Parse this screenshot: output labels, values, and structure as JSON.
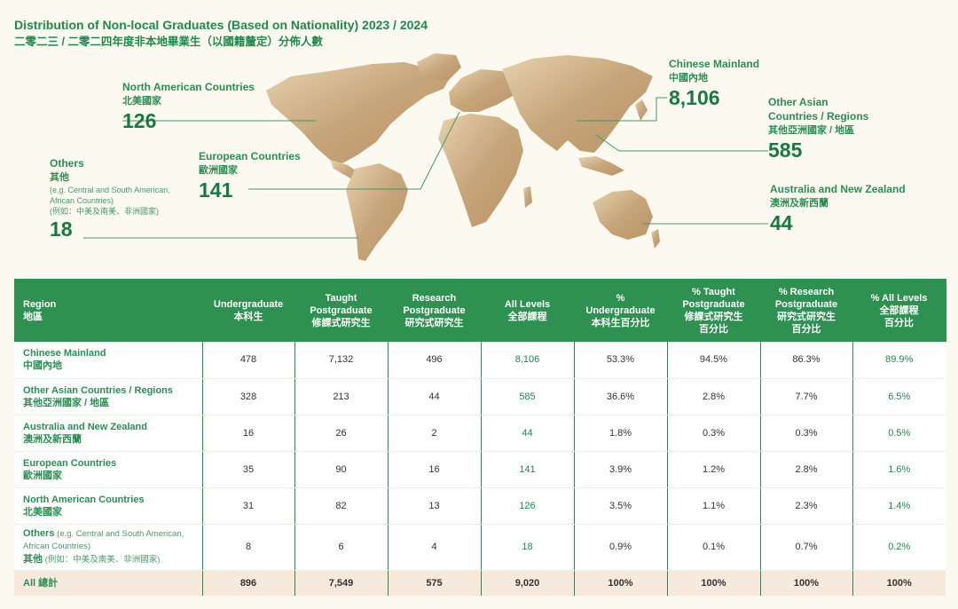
{
  "title": {
    "en": "Distribution of Non-local Graduates (Based on Nationality) 2023 / 2024",
    "zh": "二零二三 / 二零二四年度非本地畢業生（以國籍釐定）分佈人數"
  },
  "colors": {
    "accent": "#1e8a4c",
    "header_bg": "#2f9151",
    "map_gold": "#c9a97c",
    "total_row": "#f7e9dc",
    "page_bg": "#fcf9f0"
  },
  "callouts": {
    "chinese_mainland": {
      "en": "Chinese Mainland",
      "zh": "中國內地",
      "value": "8,106"
    },
    "other_asian": {
      "en1": "Other Asian",
      "en2": "Countries / Regions",
      "zh": "其他亞洲國家 / 地區",
      "value": "585"
    },
    "australia_nz": {
      "en": "Australia and New Zealand",
      "zh": "澳洲及新西蘭",
      "value": "44"
    },
    "north_american": {
      "en": "North American Countries",
      "zh": "北美國家",
      "value": "126"
    },
    "european": {
      "en": "European Countries",
      "zh": "歐洲國家",
      "value": "141"
    },
    "others": {
      "en": "Others",
      "zh": "其他",
      "note1": "(e.g. Central and South American,",
      "note2": "African Countries)",
      "note_zh": "(例如：中美及南美、非洲國家)",
      "value": "18"
    }
  },
  "table": {
    "headers": [
      {
        "en": [
          "Region"
        ],
        "zh": [
          "地區"
        ]
      },
      {
        "en": [
          "Undergraduate"
        ],
        "zh": [
          "本科生"
        ]
      },
      {
        "en": [
          "Taught",
          "Postgraduate"
        ],
        "zh": [
          "修課式研究生"
        ]
      },
      {
        "en": [
          "Research",
          "Postgraduate"
        ],
        "zh": [
          "研究式研究生"
        ]
      },
      {
        "en": [
          "All Levels"
        ],
        "zh": [
          "全部課程"
        ]
      },
      {
        "en": [
          "%",
          "Undergraduate"
        ],
        "zh": [
          "本科生百分比"
        ]
      },
      {
        "en": [
          "% Taught",
          "Postgraduate"
        ],
        "zh": [
          "修課式研究生",
          "百分比"
        ]
      },
      {
        "en": [
          "% Research",
          "Postgraduate"
        ],
        "zh": [
          "研究式研究生",
          "百分比"
        ]
      },
      {
        "en": [
          "% All Levels"
        ],
        "zh": [
          "全部課程",
          "百分比"
        ]
      }
    ],
    "rows": [
      {
        "en": "Chinese Mainland",
        "zh": "中國內地",
        "values": [
          "478",
          "7,132",
          "496",
          "8,106",
          "53.3%",
          "94.5%",
          "86.3%",
          "89.9%"
        ]
      },
      {
        "en": "Other Asian Countries / Regions",
        "zh": "其他亞洲國家 / 地區",
        "values": [
          "328",
          "213",
          "44",
          "585",
          "36.6%",
          "2.8%",
          "7.7%",
          "6.5%"
        ]
      },
      {
        "en": "Australia and New Zealand",
        "zh": "澳洲及新西蘭",
        "values": [
          "16",
          "26",
          "2",
          "44",
          "1.8%",
          "0.3%",
          "0.3%",
          "0.5%"
        ]
      },
      {
        "en": "European Countries",
        "zh": "歐洲國家",
        "values": [
          "35",
          "90",
          "16",
          "141",
          "3.9%",
          "1.2%",
          "2.8%",
          "1.6%"
        ]
      },
      {
        "en": "North American Countries",
        "zh": "北美國家",
        "values": [
          "31",
          "82",
          "13",
          "126",
          "3.5%",
          "1.1%",
          "2.3%",
          "1.4%"
        ]
      }
    ],
    "others_row": {
      "en": "Others",
      "note_en1": " (e.g. Central and South American,",
      "note_en2": "African Countries)",
      "zh": "其他",
      "note_zh": " (例如：中美及南美、非洲國家)",
      "values": [
        "8",
        "6",
        "4",
        "18",
        "0.9%",
        "0.1%",
        "0.7%",
        "0.2%"
      ]
    },
    "total_row": {
      "label": "All 總計",
      "values": [
        "896",
        "7,549",
        "575",
        "9,020",
        "100%",
        "100%",
        "100%",
        "100%"
      ]
    }
  },
  "chart_data": {
    "type": "table",
    "title": "Distribution of Non-local Graduates (Based on Nationality) 2023 / 2024",
    "columns": [
      "Region",
      "Undergraduate",
      "Taught Postgraduate",
      "Research Postgraduate",
      "All Levels",
      "% Undergraduate",
      "% Taught Postgraduate",
      "% Research Postgraduate",
      "% All Levels"
    ],
    "rows": [
      [
        "Chinese Mainland",
        478,
        7132,
        496,
        8106,
        53.3,
        94.5,
        86.3,
        89.9
      ],
      [
        "Other Asian Countries / Regions",
        328,
        213,
        44,
        585,
        36.6,
        2.8,
        7.7,
        6.5
      ],
      [
        "Australia and New Zealand",
        16,
        26,
        2,
        44,
        1.8,
        0.3,
        0.3,
        0.5
      ],
      [
        "European Countries",
        35,
        90,
        16,
        141,
        3.9,
        1.2,
        2.8,
        1.6
      ],
      [
        "North American Countries",
        31,
        82,
        13,
        126,
        3.5,
        1.1,
        2.3,
        1.4
      ],
      [
        "Others",
        8,
        6,
        4,
        18,
        0.9,
        0.1,
        0.7,
        0.2
      ],
      [
        "All",
        896,
        7549,
        575,
        9020,
        100,
        100,
        100,
        100
      ]
    ]
  }
}
